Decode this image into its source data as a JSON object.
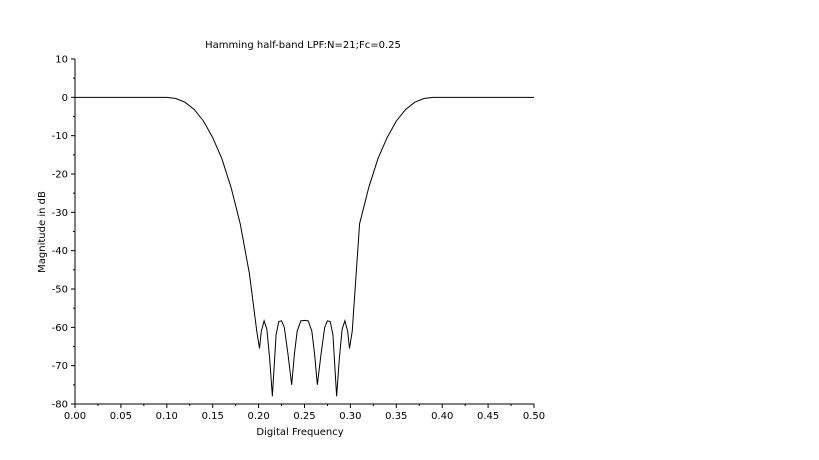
{
  "chart_data": {
    "type": "line",
    "title": "Hamming half-band LPF:N=21;Fc=0.25",
    "xlabel": "Digital Frequency",
    "ylabel": "Magnitude in dB",
    "xlim": [
      0,
      0.5
    ],
    "ylim": [
      -80,
      10
    ],
    "grid": false,
    "x_ticks": [
      "0.00",
      "0.05",
      "0.10",
      "0.15",
      "0.20",
      "0.25",
      "0.30",
      "0.35",
      "0.40",
      "0.45",
      "0.50"
    ],
    "y_ticks": [
      "10",
      "0",
      "-10",
      "-20",
      "-30",
      "-40",
      "-50",
      "-60",
      "-70",
      "-80"
    ],
    "series": [
      {
        "x": [
          0.0,
          0.08,
          0.1,
          0.11,
          0.12,
          0.13,
          0.14,
          0.15,
          0.16,
          0.17,
          0.18,
          0.19,
          0.198,
          0.201,
          0.203,
          0.206,
          0.209,
          0.212,
          0.215,
          0.217,
          0.219,
          0.222,
          0.225,
          0.228,
          0.232,
          0.236,
          0.239,
          0.242,
          0.246,
          0.25,
          0.254,
          0.258,
          0.261,
          0.264,
          0.268,
          0.272,
          0.275,
          0.278,
          0.281,
          0.283,
          0.285,
          0.288,
          0.291,
          0.294,
          0.297,
          0.299,
          0.302,
          0.31,
          0.32,
          0.33,
          0.34,
          0.35,
          0.36,
          0.37,
          0.38,
          0.39,
          0.4,
          0.42,
          0.5
        ],
        "values": [
          0.0,
          0.0,
          0.0,
          -0.3,
          -1.3,
          -3.2,
          -6.2,
          -10.5,
          -16.0,
          -23.5,
          -33.0,
          -46.0,
          -61.0,
          -65.5,
          -61.0,
          -58.3,
          -60.5,
          -68.0,
          -78.0,
          -70.0,
          -62.0,
          -58.5,
          -58.3,
          -60.0,
          -67.0,
          -75.0,
          -67.0,
          -61.0,
          -58.3,
          -58.2,
          -58.3,
          -61.0,
          -67.0,
          -75.0,
          -67.0,
          -60.0,
          -58.3,
          -58.5,
          -62.0,
          -70.0,
          -78.0,
          -68.0,
          -60.5,
          -58.3,
          -61.0,
          -65.5,
          -61.0,
          -33.0,
          -23.5,
          -16.0,
          -10.5,
          -6.2,
          -3.2,
          -1.3,
          -0.3,
          0.0,
          0.0,
          0.0,
          0.0
        ]
      }
    ]
  }
}
